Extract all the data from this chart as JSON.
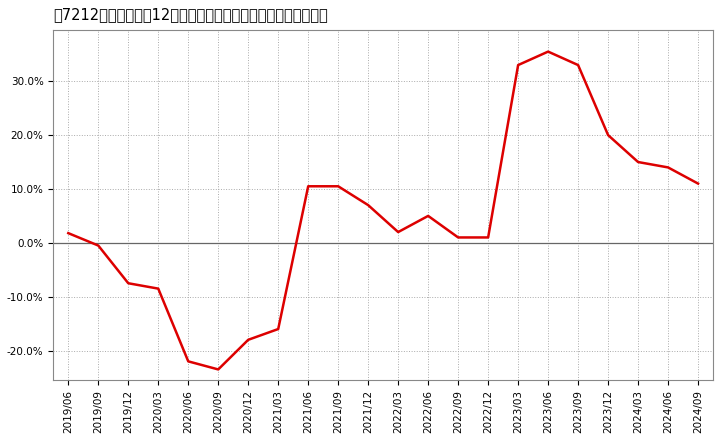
{
  "title": "［7212］　売上高の12か月移動合計の対前年同期増減率の推移",
  "line_color": "#dd0000",
  "zero_line_color": "#666666",
  "background_color": "#ffffff",
  "plot_bg_color": "#ffffff",
  "grid_color": "#aaaaaa",
  "ylim": [
    -0.255,
    0.395
  ],
  "yticks": [
    -0.2,
    -0.1,
    0.0,
    0.1,
    0.2,
    0.3
  ],
  "ytick_labels": [
    "-20.0%",
    "-10.0%",
    "0.0%",
    "10.0%",
    "20.0%",
    "30.0%"
  ],
  "dates": [
    "2019/06",
    "2019/09",
    "2019/12",
    "2020/03",
    "2020/06",
    "2020/09",
    "2020/12",
    "2021/03",
    "2021/06",
    "2021/09",
    "2021/12",
    "2022/03",
    "2022/06",
    "2022/09",
    "2022/12",
    "2023/03",
    "2023/06",
    "2023/09",
    "2023/12",
    "2024/03",
    "2024/06",
    "2024/09"
  ],
  "values": [
    0.018,
    -0.005,
    -0.075,
    -0.085,
    -0.22,
    -0.235,
    -0.18,
    -0.16,
    0.105,
    0.105,
    0.07,
    0.02,
    0.05,
    0.01,
    0.01,
    0.33,
    0.355,
    0.33,
    0.2,
    0.15,
    0.14,
    0.11
  ],
  "line_width": 1.8,
  "title_fontsize": 10.5,
  "tick_fontsize": 7.5
}
